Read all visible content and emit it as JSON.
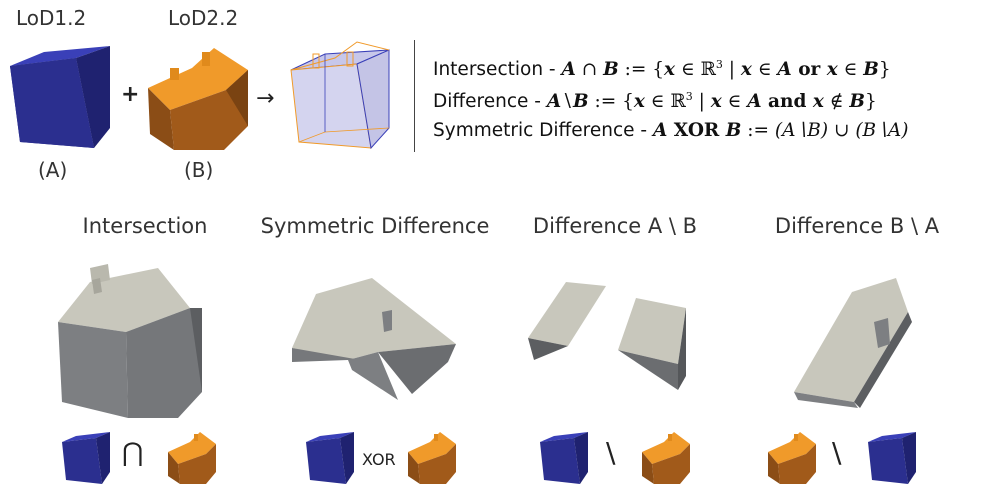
{
  "top": {
    "label_a_name": "LoD1.2",
    "label_b_name": "LoD2.2",
    "label_a": "(A)",
    "label_b": "(B)",
    "plus": "+",
    "arrow": "→"
  },
  "formulas": {
    "intersection": {
      "name": "Intersection - ",
      "lhs_a": "A",
      "op": " ∩ ",
      "lhs_b": "B",
      "def": " := ",
      "open": "{",
      "x": "x",
      "in_r": " ∈ ℝ",
      "sup": "3",
      "bar": " | ",
      "x2": "x",
      "in": " ∈ ",
      "a": "A",
      "conj": " or ",
      "x3": "x",
      "in2": " ∈ ",
      "b": "B",
      "close": "}"
    },
    "difference": {
      "name": "Difference - ",
      "lhs_a": "A",
      "op": "∖",
      "lhs_b": "B",
      "def": " := ",
      "open": "{",
      "x": "x",
      "in_r": " ∈ ℝ",
      "sup": "3",
      "bar": " | ",
      "x2": "x",
      "in": " ∈ ",
      "a": "A",
      "conj": " and ",
      "x3": "x",
      "in2": " ∉ ",
      "b": "B",
      "close": "}"
    },
    "symmetric": {
      "name": "Symmetric Difference - ",
      "lhs_a": "A",
      "op": " XOR ",
      "lhs_b": "B",
      "def": " := ",
      "rhs": "(A∖B) ∪ (B∖A)"
    }
  },
  "results": [
    {
      "title": "Intersection",
      "operator": "⋂"
    },
    {
      "title": "Symmetric Difference",
      "operator": "XOR"
    },
    {
      "title": "Difference A \\ B",
      "operator": "\\"
    },
    {
      "title": "Difference B \\ A",
      "operator": "\\"
    }
  ],
  "colors": {
    "cube_front": "#2b2f8f",
    "cube_top": "#3a40b8",
    "cube_side": "#1f2270",
    "house_roof": "#f09a2a",
    "house_wall": "#a15a1a",
    "house_side": "#7a4312",
    "gray_roof": "#c8c7bc",
    "gray_wall": "#7d7f82",
    "gray_side": "#5c5e61"
  }
}
